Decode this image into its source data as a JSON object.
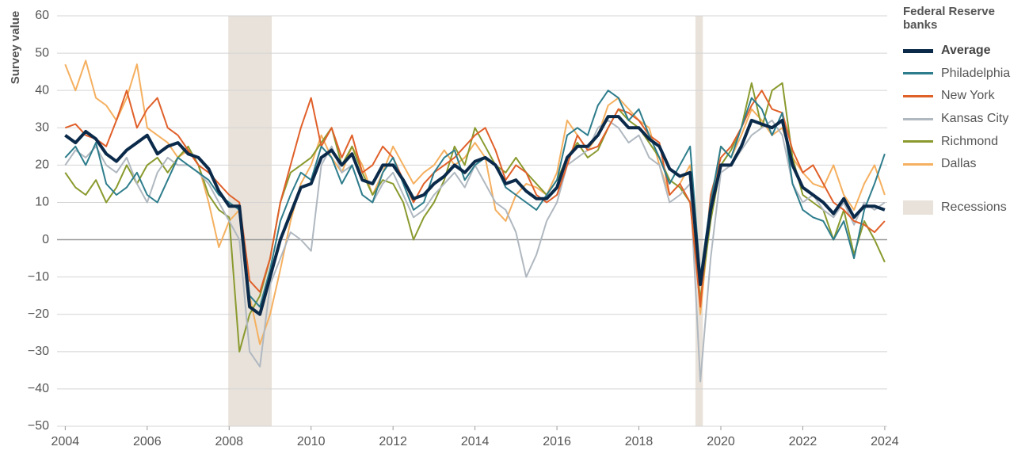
{
  "chart_data": {
    "type": "line",
    "y_label": "Survey value",
    "legend_title": "Federal Reserve banks",
    "legend_position": "right",
    "grid": true,
    "xlim": [
      2003.8,
      2024.06
    ],
    "xticks": [
      2004,
      2006,
      2008,
      2010,
      2012,
      2014,
      2016,
      2018,
      2020,
      2022,
      2024
    ],
    "ylim": [
      -50,
      60
    ],
    "yticks": [
      {
        "value": -50,
        "label": "−50"
      },
      {
        "value": -40,
        "label": "−40"
      },
      {
        "value": -30,
        "label": "−30"
      },
      {
        "value": -20,
        "label": "−20"
      },
      {
        "value": -10,
        "label": "−10"
      },
      0,
      10,
      20,
      30,
      40,
      50,
      60
    ],
    "recessions": {
      "label": "Recessions",
      "color": "#e8e2da",
      "periods": [
        [
          2007.98,
          2009.04
        ],
        [
          2019.38,
          2019.56
        ]
      ]
    },
    "x": [
      2004,
      2004.25,
      2004.5,
      2004.75,
      2005,
      2005.25,
      2005.5,
      2005.75,
      2006,
      2006.25,
      2006.5,
      2006.75,
      2007,
      2007.25,
      2007.5,
      2007.75,
      2008,
      2008.25,
      2008.5,
      2008.75,
      2009,
      2009.25,
      2009.5,
      2009.75,
      2010,
      2010.25,
      2010.5,
      2010.75,
      2011,
      2011.25,
      2011.5,
      2011.75,
      2012,
      2012.25,
      2012.5,
      2012.75,
      2013,
      2013.25,
      2013.5,
      2013.75,
      2014,
      2014.25,
      2014.5,
      2014.75,
      2015,
      2015.25,
      2015.5,
      2015.75,
      2016,
      2016.25,
      2016.5,
      2016.75,
      2017,
      2017.25,
      2017.5,
      2017.75,
      2018,
      2018.25,
      2018.5,
      2018.75,
      2019,
      2019.25,
      2019.5,
      2019.75,
      2020,
      2020.25,
      2020.5,
      2020.75,
      2021,
      2021.25,
      2021.5,
      2021.75,
      2022,
      2022.25,
      2022.5,
      2022.75,
      2023,
      2023.25,
      2023.5,
      2023.75,
      2024
    ],
    "series": [
      {
        "name": "Average",
        "color": "#0b2a4a",
        "width": 4,
        "values": [
          28,
          26,
          29,
          27,
          23,
          21,
          24,
          26,
          28,
          23,
          25,
          26,
          23,
          22,
          19,
          13,
          9,
          9,
          -18,
          -20,
          -10,
          0,
          7,
          14,
          15,
          22,
          24,
          20,
          23,
          16,
          15,
          20,
          20,
          16,
          11,
          12,
          15,
          17,
          20,
          18,
          21,
          22,
          20,
          15,
          16,
          13,
          11,
          11,
          14,
          22,
          25,
          25,
          28,
          33,
          33,
          30,
          30,
          27,
          25,
          19,
          17,
          18,
          -12,
          8,
          20,
          20,
          25,
          32,
          31,
          30,
          32,
          20,
          14,
          12,
          10,
          7,
          11,
          6,
          9,
          9,
          8
        ]
      },
      {
        "name": "Philadelphia",
        "color": "#2e7d8c",
        "width": 2,
        "values": [
          22,
          25,
          20,
          26,
          15,
          12,
          14,
          18,
          12,
          10,
          16,
          22,
          20,
          18,
          16,
          12,
          10,
          8,
          -15,
          -18,
          -8,
          5,
          12,
          18,
          16,
          25,
          22,
          15,
          20,
          12,
          10,
          18,
          22,
          15,
          8,
          10,
          18,
          22,
          24,
          16,
          20,
          22,
          20,
          14,
          12,
          10,
          8,
          12,
          16,
          28,
          30,
          28,
          36,
          40,
          38,
          32,
          35,
          28,
          22,
          15,
          20,
          25,
          -10,
          10,
          25,
          22,
          30,
          38,
          35,
          28,
          34,
          15,
          8,
          6,
          5,
          0,
          5,
          -5,
          8,
          15,
          23
        ]
      },
      {
        "name": "New York",
        "color": "#e0602a",
        "width": 2,
        "values": [
          30,
          31,
          28,
          27,
          25,
          32,
          40,
          30,
          35,
          38,
          30,
          28,
          24,
          20,
          18,
          15,
          12,
          10,
          -11,
          -14,
          -5,
          10,
          20,
          30,
          38,
          25,
          30,
          22,
          28,
          18,
          20,
          25,
          22,
          16,
          10,
          15,
          18,
          20,
          22,
          25,
          28,
          30,
          24,
          16,
          20,
          18,
          12,
          10,
          12,
          20,
          28,
          24,
          25,
          30,
          35,
          34,
          32,
          28,
          26,
          12,
          15,
          10,
          -18,
          12,
          22,
          25,
          30,
          36,
          40,
          35,
          34,
          24,
          18,
          20,
          15,
          10,
          8,
          5,
          4,
          2,
          5
        ]
      },
      {
        "name": "Kansas City",
        "color": "#b0b8c0",
        "width": 2,
        "values": [
          20,
          24,
          22,
          25,
          20,
          18,
          22,
          15,
          10,
          18,
          22,
          20,
          20,
          18,
          15,
          10,
          5,
          0,
          -30,
          -34,
          -12,
          -5,
          2,
          0,
          -3,
          20,
          25,
          18,
          20,
          12,
          10,
          15,
          18,
          12,
          6,
          8,
          12,
          15,
          18,
          14,
          20,
          15,
          10,
          8,
          2,
          -10,
          -4,
          5,
          10,
          20,
          22,
          24,
          30,
          32,
          30,
          26,
          28,
          22,
          20,
          10,
          12,
          15,
          -38,
          -5,
          18,
          20,
          24,
          28,
          30,
          32,
          28,
          15,
          10,
          12,
          8,
          6,
          10,
          4,
          10,
          8,
          10
        ]
      },
      {
        "name": "Richmond",
        "color": "#8a9a2e",
        "width": 2,
        "values": [
          18,
          14,
          12,
          16,
          10,
          14,
          20,
          15,
          20,
          22,
          18,
          22,
          25,
          20,
          12,
          8,
          6,
          -30,
          -20,
          -15,
          -5,
          10,
          18,
          20,
          22,
          26,
          30,
          20,
          25,
          18,
          12,
          16,
          15,
          10,
          0,
          6,
          10,
          16,
          25,
          20,
          30,
          25,
          20,
          18,
          22,
          18,
          15,
          12,
          16,
          22,
          26,
          22,
          24,
          30,
          35,
          32,
          30,
          26,
          22,
          16,
          14,
          10,
          -16,
          5,
          20,
          24,
          30,
          42,
          30,
          40,
          42,
          22,
          12,
          10,
          8,
          0,
          8,
          -4,
          5,
          0,
          -6
        ]
      },
      {
        "name": "Dallas",
        "color": "#f5b060",
        "width": 2,
        "values": [
          47,
          40,
          48,
          38,
          36,
          32,
          38,
          47,
          30,
          28,
          26,
          22,
          24,
          20,
          10,
          -2,
          5,
          8,
          -15,
          -28,
          -20,
          -8,
          5,
          15,
          20,
          28,
          22,
          18,
          25,
          20,
          12,
          18,
          25,
          20,
          15,
          18,
          20,
          24,
          20,
          22,
          26,
          22,
          8,
          5,
          12,
          15,
          14,
          12,
          18,
          32,
          28,
          24,
          28,
          36,
          38,
          35,
          32,
          30,
          20,
          12,
          15,
          20,
          -20,
          8,
          25,
          22,
          28,
          35,
          32,
          28,
          30,
          22,
          18,
          15,
          14,
          20,
          12,
          8,
          15,
          20,
          12
        ]
      }
    ]
  }
}
